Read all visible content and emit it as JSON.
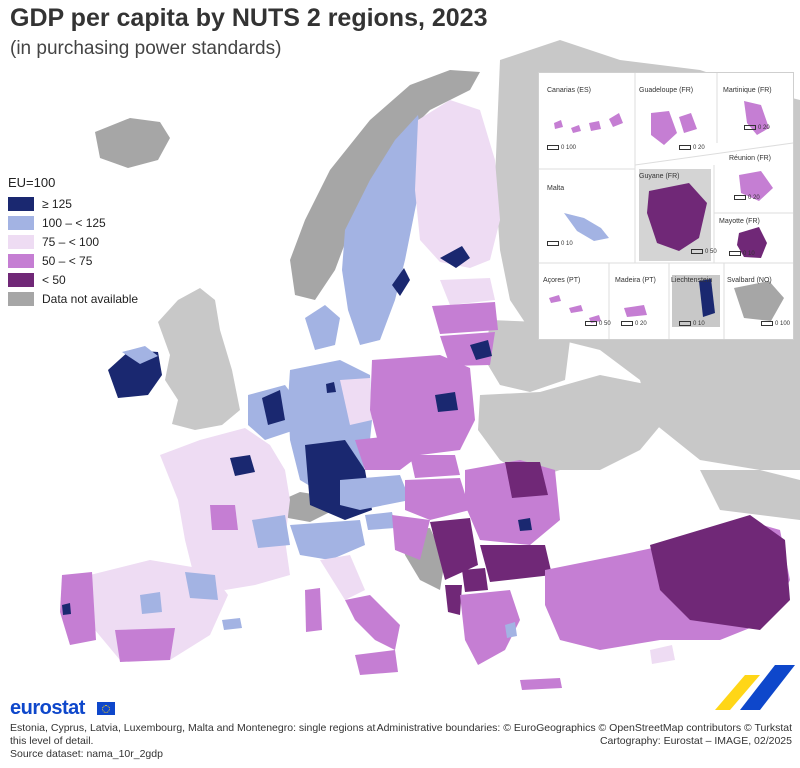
{
  "header": {
    "title": "GDP per capita by NUTS 2 regions, 2023",
    "subtitle": "(in purchasing power standards)"
  },
  "legend": {
    "title": "EU=100",
    "items": [
      {
        "label": "≥ 125",
        "color": "#1a2870"
      },
      {
        "label": "100 – < 125",
        "color": "#a3b3e3"
      },
      {
        "label": "75 – < 100",
        "color": "#eedcf3"
      },
      {
        "label": "50 – < 75",
        "color": "#c57ed3"
      },
      {
        "label": "< 50",
        "color": "#702877"
      },
      {
        "label": "Data not available",
        "color": "#a6a6a6"
      }
    ]
  },
  "insets": [
    {
      "name": "Canarias (ES)",
      "scale": "0  100"
    },
    {
      "name": "Guadeloupe (FR)",
      "scale": "0  20"
    },
    {
      "name": "Martinique (FR)",
      "scale": "0  20"
    },
    {
      "name": "Réunion (FR)",
      "scale": "0  20"
    },
    {
      "name": "Malta",
      "scale": "0  10"
    },
    {
      "name": "Guyane (FR)",
      "scale": "0  50"
    },
    {
      "name": "Mayotte (FR)",
      "scale": "0  10"
    },
    {
      "name": "Açores (PT)",
      "scale": "0  50"
    },
    {
      "name": "Madeira (PT)",
      "scale": "0  20"
    },
    {
      "name": "Liechtenstein",
      "scale": "0  10"
    },
    {
      "name": "Svalbard (NO)",
      "scale": "0 100"
    }
  ],
  "branding": {
    "logo": "eurostat"
  },
  "footer": {
    "note_line1": "Estonia, Cyprus, Latvia, Luxembourg, Malta and Montenegro: single regions at",
    "note_line2": "this level of detail.",
    "source": "Source dataset: nama_10r_2gdp",
    "boundaries": "Administrative boundaries: © EuroGeographics © OpenStreetMap contributors © Turkstat",
    "cartography": "Cartography: Eurostat – IMAGE, 02/2025"
  },
  "colors": {
    "sea": "#ffffff",
    "non_eu_land": "#c8c8c8",
    "border": "#ffffff"
  }
}
